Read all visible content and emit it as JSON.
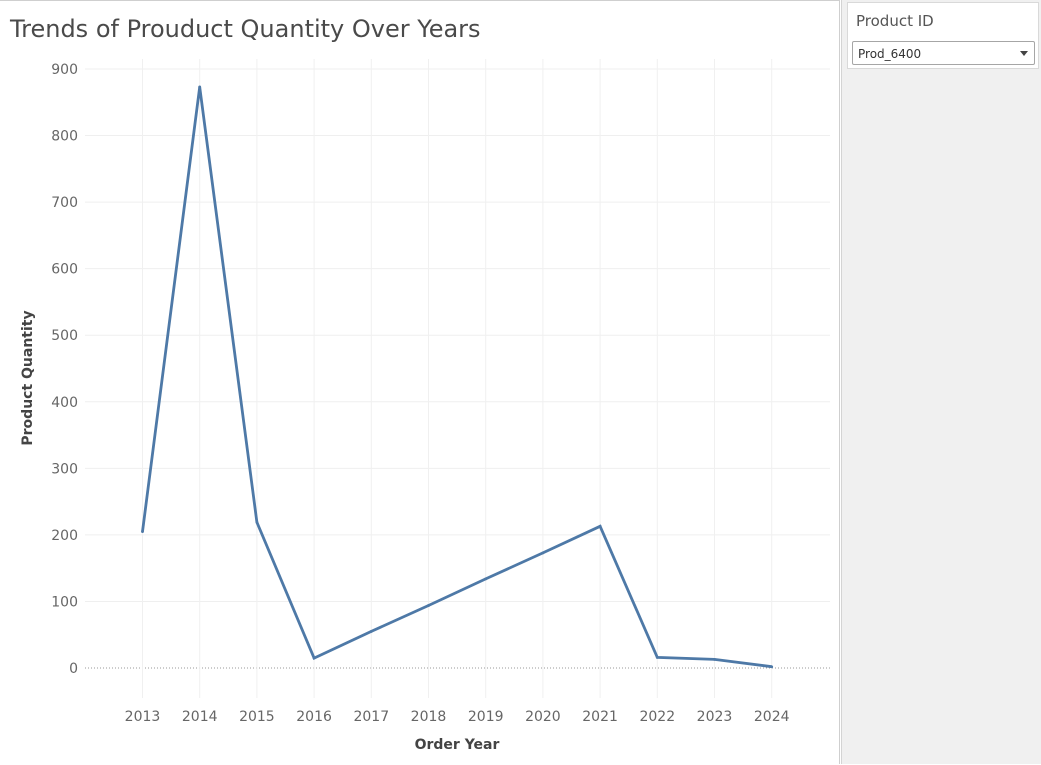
{
  "chart_data": {
    "type": "line",
    "title": "Trends of Prouduct Quantity Over Years",
    "xlabel": "Order Year",
    "ylabel": "Product Quantity",
    "x": [
      "2013",
      "2014",
      "2015",
      "2016",
      "2017",
      "2018",
      "2019",
      "2020",
      "2021",
      "2022",
      "2023",
      "2024"
    ],
    "y_ticks": [
      "0",
      "100",
      "200",
      "300",
      "400",
      "500",
      "600",
      "700",
      "800",
      "900"
    ],
    "ylim": [
      -45,
      915
    ],
    "grid": true,
    "series": [
      {
        "values": [
          205,
          873,
          219,
          15,
          55,
          94,
          134,
          173,
          213,
          16,
          13,
          2
        ],
        "color": "#4e79a7"
      }
    ]
  },
  "filter": {
    "title": "Product ID",
    "selected": "Prod_6400",
    "caret_icon": "chevron-down-icon"
  }
}
